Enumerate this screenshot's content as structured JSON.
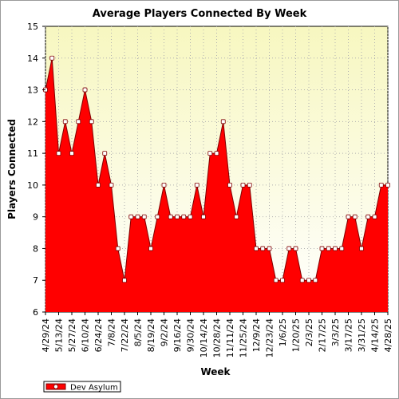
{
  "chart_data": {
    "type": "area",
    "title": "Average Players Connected By Week",
    "xlabel": "Week",
    "ylabel": "Players Connected",
    "ylim": [
      6,
      15
    ],
    "yticks": [
      "6",
      "7",
      "8",
      "9",
      "10",
      "11",
      "12",
      "13",
      "14",
      "15"
    ],
    "grid": true,
    "legend_position": "bottom-left",
    "colors": {
      "fill": "#ff0000",
      "line": "#800000",
      "plot_bg_top": "#f7f7c0",
      "plot_bg_bottom": "#ffffff"
    },
    "x_tick_labels": [
      "4/29/24",
      "5/13/24",
      "5/27/24",
      "6/10/24",
      "6/24/24",
      "7/8/24",
      "7/22/24",
      "8/5/24",
      "8/19/24",
      "9/2/24",
      "9/16/24",
      "9/30/24",
      "10/14/24",
      "10/28/24",
      "11/11/24",
      "11/25/24",
      "12/9/24",
      "12/23/24",
      "1/6/25",
      "1/20/25",
      "2/3/25",
      "2/17/25",
      "3/3/25",
      "3/17/25",
      "3/31/25",
      "4/14/25",
      "4/28/25"
    ],
    "series": [
      {
        "name": "Dev Asylum",
        "values": [
          13,
          14,
          11,
          12,
          11,
          12,
          13,
          12,
          10,
          11,
          10,
          8,
          7,
          9,
          9,
          9,
          8,
          9,
          10,
          9,
          9,
          9,
          9,
          10,
          9,
          11,
          11,
          12,
          10,
          9,
          10,
          10,
          8,
          8,
          8,
          7,
          7,
          8,
          8,
          7,
          7,
          7,
          8,
          8,
          8,
          8,
          9,
          9,
          8,
          9,
          9,
          10,
          10
        ]
      }
    ]
  }
}
